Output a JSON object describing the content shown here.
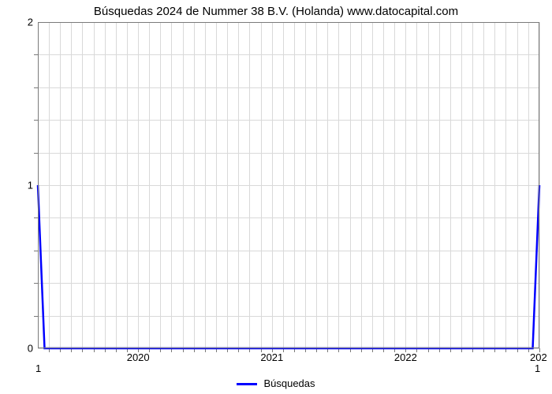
{
  "chart": {
    "type": "line",
    "title": "Búsquedas 2024 de Nummer 38 B.V. (Holanda) www.datocapital.com",
    "title_fontsize": 15,
    "background_color": "#ffffff",
    "grid_color": "#d9d9d9",
    "axis_border_color": "#7a7a7a",
    "text_color": "#000000",
    "label_fontsize": 13,
    "x": {
      "min": 2019.25,
      "max": 2023.0,
      "major_ticks": [
        2020,
        2021,
        2022
      ],
      "major_tick_labels": [
        "2020",
        "2021",
        "2022"
      ],
      "minor_step": 0.0833333,
      "grid_at_major": true,
      "grid_at_minor": true,
      "minor_tick_marks": true,
      "extra_below_left_label": "1",
      "extra_below_right_label": "1",
      "right_edge_label": "202"
    },
    "y": {
      "min": 0,
      "max": 2,
      "major_ticks": [
        0,
        1,
        2
      ],
      "major_tick_labels": [
        "0",
        "1",
        "2"
      ],
      "minor_step": 0.2,
      "grid_at_major": true,
      "grid_at_minor": true,
      "minor_tick_marks": true
    },
    "series": [
      {
        "name": "Búsquedas",
        "color": "#0000ff",
        "line_width": 2.5,
        "x": [
          2019.25,
          2019.3,
          2022.95,
          2023.0
        ],
        "y": [
          1.0,
          0.0,
          0.0,
          1.0
        ]
      }
    ],
    "legend": {
      "position": "bottom-center",
      "label": "Búsquedas",
      "swatch_width": 26,
      "swatch_height": 3
    }
  }
}
